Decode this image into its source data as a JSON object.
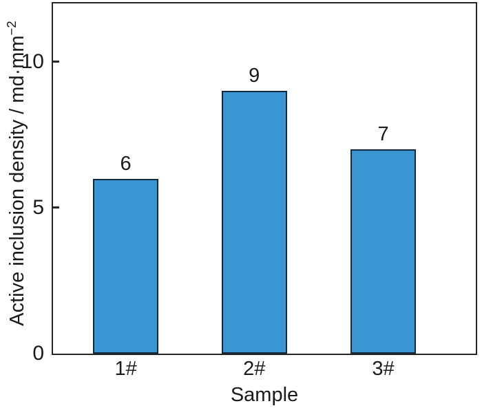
{
  "chart_data": {
    "type": "bar",
    "categories": [
      "1#",
      "2#",
      "3#"
    ],
    "values": [
      6,
      9,
      7
    ],
    "bar_value_labels": [
      "6",
      "9",
      "7"
    ],
    "title": "",
    "xlabel": "Sample",
    "ylabel": "Active inclusion density / md·mm⁻²",
    "ylabel_base": "Active inclusion density / md·mm",
    "ylabel_exponent": "−2",
    "yticks": [
      0,
      5,
      10
    ],
    "ylim": [
      0,
      12
    ],
    "grid": false,
    "legend": false,
    "bar_color": "#3a96d2",
    "bar_border_color": "#15273a",
    "axis_color": "#262626",
    "text_color": "#1a1a1a",
    "background_color": "#ffffff"
  }
}
